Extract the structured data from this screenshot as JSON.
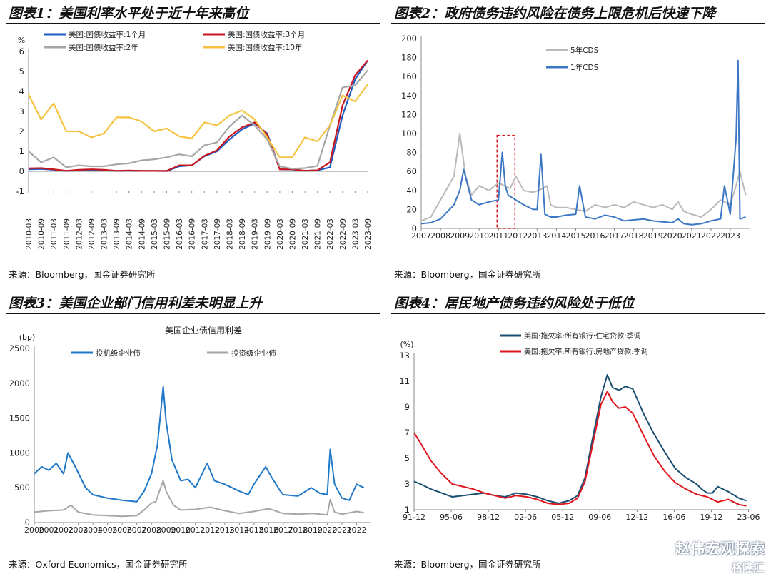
{
  "panels": [
    {
      "title": "图表1：美国利率水平处于近十年来高位",
      "source": "来源：Bloomberg，国金证券研究所"
    },
    {
      "title": "图表2：政府债务违约风险在债务上限危机后快速下降",
      "source": "来源：Bloomberg，国金证券研究所"
    },
    {
      "title": "图表3：美国企业部门信用利差未明显上升",
      "source": "来源：Oxford Economics，国金证券研究所"
    },
    {
      "title": "图表4：居民地产债务违约风险处于低位",
      "source": "来源：Bloomberg，国金证券研究所"
    }
  ],
  "watermark": {
    "text": "赵伟宏观探索",
    "brand": "格隆汇"
  },
  "chart_data": [
    {
      "type": "line",
      "title": "",
      "ylabel": "%",
      "ylim": [
        -1,
        6
      ],
      "yticks": [
        -1,
        0,
        1,
        2,
        3,
        4,
        5,
        6
      ],
      "categories": [
        "2010-03",
        "2010-09",
        "2011-03",
        "2011-09",
        "2012-03",
        "2012-09",
        "2013-03",
        "2013-09",
        "2014-03",
        "2014-09",
        "2015-03",
        "2015-09",
        "2016-03",
        "2016-09",
        "2017-03",
        "2017-09",
        "2018-03",
        "2018-09",
        "2019-03",
        "2019-09",
        "2020-03",
        "2020-09",
        "2021-03",
        "2021-09",
        "2022-03",
        "2022-09",
        "2023-03",
        "2023-09"
      ],
      "legend_position": "top-left",
      "series": [
        {
          "name": "美国:国债收益率:1个月",
          "color": "#1f5bc4",
          "values": [
            0.1,
            0.12,
            0.08,
            0.02,
            0.05,
            0.08,
            0.06,
            0.02,
            0.03,
            0.02,
            0.02,
            0.01,
            0.25,
            0.3,
            0.75,
            1.0,
            1.6,
            2.1,
            2.4,
            1.9,
            0.1,
            0.09,
            0.03,
            0.05,
            0.2,
            2.8,
            4.6,
            5.55
          ]
        },
        {
          "name": "美国:国债收益率:3个月",
          "color": "#c8161e",
          "values": [
            0.15,
            0.16,
            0.1,
            0.02,
            0.08,
            0.1,
            0.08,
            0.02,
            0.04,
            0.02,
            0.02,
            0.02,
            0.3,
            0.3,
            0.77,
            1.05,
            1.75,
            2.2,
            2.45,
            1.85,
            0.1,
            0.1,
            0.03,
            0.05,
            0.45,
            3.3,
            4.8,
            5.55
          ]
        },
        {
          "name": "美国:国债收益率:2年",
          "color": "#a6a6a6",
          "values": [
            1.0,
            0.45,
            0.7,
            0.2,
            0.3,
            0.25,
            0.25,
            0.35,
            0.4,
            0.55,
            0.6,
            0.7,
            0.85,
            0.75,
            1.3,
            1.45,
            2.25,
            2.8,
            2.3,
            1.6,
            0.25,
            0.13,
            0.16,
            0.27,
            2.3,
            4.2,
            4.3,
            5.05
          ]
        },
        {
          "name": "美国:国债收益率:10年",
          "color": "#f5c342",
          "values": [
            3.85,
            2.6,
            3.4,
            2.0,
            2.0,
            1.7,
            1.9,
            2.7,
            2.7,
            2.5,
            2.0,
            2.15,
            1.75,
            1.65,
            2.45,
            2.3,
            2.8,
            3.05,
            2.6,
            1.7,
            0.7,
            0.7,
            1.7,
            1.5,
            2.3,
            3.8,
            3.5,
            4.35
          ]
        }
      ]
    },
    {
      "type": "line",
      "title": "",
      "ylim": [
        0,
        200
      ],
      "yticks": [
        0,
        20,
        40,
        60,
        80,
        100,
        120,
        140,
        160,
        180,
        200
      ],
      "categories": [
        "2007",
        "2008",
        "2009",
        "2010",
        "2011",
        "2012",
        "2013",
        "2014",
        "2015",
        "2016",
        "2017",
        "2018",
        "2019",
        "2020",
        "2021",
        "2022",
        "2023"
      ],
      "legend_position": "top-left",
      "annotation": "dashed box around 2011 spike",
      "series": [
        {
          "name": "5年CDS",
          "color": "#b9b9b9",
          "x": [
            2007,
            2007.5,
            2008,
            2008.7,
            2009,
            2009.3,
            2009.6,
            2010,
            2010.5,
            2011,
            2011.3,
            2011.6,
            2011.9,
            2012.3,
            2012.8,
            2013.3,
            2013.5,
            2013.7,
            2014,
            2014.5,
            2015,
            2015.5,
            2016,
            2016.5,
            2017,
            2017.5,
            2018,
            2018.5,
            2019,
            2019.5,
            2020,
            2020.3,
            2020.6,
            2021,
            2021.5,
            2022,
            2022.5,
            2023,
            2023.3,
            2023.5,
            2023.8
          ],
          "values": [
            8,
            12,
            30,
            55,
            100,
            55,
            35,
            45,
            40,
            48,
            45,
            42,
            55,
            40,
            38,
            42,
            45,
            25,
            22,
            22,
            20,
            18,
            25,
            22,
            25,
            22,
            28,
            25,
            22,
            25,
            20,
            28,
            18,
            15,
            12,
            20,
            30,
            25,
            45,
            60,
            35
          ]
        },
        {
          "name": "1年CDS",
          "color": "#3b77c4",
          "x": [
            2007,
            2007.5,
            2008,
            2008.7,
            2009,
            2009.2,
            2009.6,
            2010,
            2010.5,
            2011,
            2011.2,
            2011.35,
            2011.5,
            2011.9,
            2012.3,
            2012.8,
            2013,
            2013.2,
            2013.4,
            2013.7,
            2014,
            2014.5,
            2015,
            2015.2,
            2015.5,
            2016,
            2016.5,
            2017,
            2017.5,
            2018,
            2018.5,
            2019,
            2019.5,
            2020,
            2020.3,
            2020.6,
            2021,
            2021.5,
            2022,
            2022.5,
            2022.7,
            2023,
            2023.3,
            2023.4,
            2023.5,
            2023.8
          ],
          "values": [
            5,
            6,
            10,
            25,
            40,
            62,
            30,
            25,
            28,
            30,
            80,
            45,
            35,
            30,
            25,
            20,
            20,
            78,
            15,
            12,
            12,
            14,
            15,
            45,
            12,
            10,
            14,
            12,
            8,
            9,
            10,
            8,
            7,
            6,
            10,
            5,
            4,
            5,
            8,
            10,
            45,
            15,
            95,
            177,
            10,
            12
          ]
        }
      ]
    },
    {
      "type": "line",
      "title": "美国企业债信用利差",
      "ylabel": "(bp)",
      "ylim": [
        0,
        2500
      ],
      "yticks": [
        0,
        500,
        1000,
        1500,
        2000,
        2500
      ],
      "categories": [
        "2000",
        "2001",
        "2002",
        "2003",
        "2004",
        "2005",
        "2006",
        "2007",
        "2008",
        "2009",
        "2010",
        "2011",
        "2012",
        "2013",
        "2014",
        "2015",
        "2016",
        "2017",
        "2018",
        "2019",
        "2020",
        "2021",
        "2022"
      ],
      "legend_position": "top",
      "series": [
        {
          "name": "投机级企业债",
          "color": "#1f78c8",
          "x": [
            2000,
            2000.5,
            2001,
            2001.5,
            2002,
            2002.3,
            2002.8,
            2003.5,
            2004,
            2005,
            2006,
            2007,
            2007.5,
            2008,
            2008.4,
            2008.8,
            2009,
            2009.4,
            2010,
            2010.5,
            2011,
            2011.8,
            2012.3,
            2013,
            2014,
            2014.6,
            2015,
            2015.8,
            2016.2,
            2016.8,
            2017,
            2018,
            2018.9,
            2019.5,
            2020,
            2020.2,
            2020.5,
            2021,
            2021.5,
            2022,
            2022.5
          ],
          "values": [
            700,
            800,
            750,
            850,
            700,
            1000,
            800,
            500,
            400,
            350,
            320,
            300,
            450,
            700,
            1100,
            1950,
            1450,
            900,
            600,
            620,
            500,
            850,
            600,
            550,
            450,
            400,
            550,
            800,
            650,
            450,
            400,
            380,
            500,
            420,
            400,
            1050,
            550,
            350,
            320,
            550,
            500
          ]
        },
        {
          "name": "投资级企业债",
          "color": "#a6a6a6",
          "x": [
            2000,
            2001,
            2002,
            2002.5,
            2003,
            2004,
            2005,
            2006,
            2007,
            2007.5,
            2008,
            2008.3,
            2008.8,
            2009,
            2009.5,
            2010,
            2011,
            2012,
            2013,
            2014,
            2015,
            2016,
            2017,
            2018,
            2019,
            2020,
            2020.2,
            2020.5,
            2021,
            2022,
            2022.5
          ],
          "values": [
            150,
            170,
            180,
            250,
            150,
            110,
            100,
            90,
            100,
            180,
            280,
            300,
            600,
            450,
            250,
            180,
            190,
            220,
            170,
            130,
            160,
            200,
            130,
            120,
            130,
            110,
            330,
            150,
            120,
            160,
            140
          ]
        }
      ]
    },
    {
      "type": "line",
      "title": "",
      "ylabel": "(%)",
      "ylim": [
        1,
        13
      ],
      "yticks": [
        1,
        3,
        5,
        7,
        9,
        11,
        13
      ],
      "categories": [
        "91-12",
        "95-06",
        "98-12",
        "02-06",
        "05-12",
        "09-06",
        "12-12",
        "16-06",
        "19-12",
        "23-06"
      ],
      "legend_position": "top-left",
      "series": [
        {
          "name": "美国:拖欠率:所有银行:住宅贷款:季调",
          "color": "#1b4f72",
          "x": [
            1991.9,
            1992.5,
            1993.5,
            1994.5,
            1995.5,
            1996.5,
            1997.5,
            1998.5,
            1999,
            1999.5,
            2000.5,
            2001.5,
            2002.5,
            2003.5,
            2004.5,
            2005.5,
            2006.5,
            2007.3,
            2008,
            2008.7,
            2009.5,
            2010.1,
            2010.6,
            2011.2,
            2011.8,
            2012.5,
            2013.5,
            2014.5,
            2015.5,
            2016.5,
            2017.5,
            2018.5,
            2019,
            2019.5,
            2020,
            2020.5,
            2021.5,
            2022.5,
            2023.2
          ],
          "values": [
            3.2,
            3.0,
            2.6,
            2.3,
            2.0,
            2.1,
            2.2,
            2.3,
            2.2,
            2.1,
            2.0,
            2.3,
            2.2,
            2.0,
            1.7,
            1.5,
            1.7,
            2.1,
            3.5,
            6.5,
            9.8,
            11.5,
            10.5,
            10.3,
            10.6,
            10.4,
            8.5,
            6.9,
            5.5,
            4.2,
            3.5,
            3.0,
            2.6,
            2.3,
            2.3,
            2.8,
            2.4,
            1.9,
            1.7
          ]
        },
        {
          "name": "美国:拖欠率:所有银行:房地产贷款:季调",
          "color": "#e0161e",
          "x": [
            1991.9,
            1992.5,
            1993.5,
            1994.5,
            1995.5,
            1996.5,
            1997.5,
            1998.5,
            1999.5,
            2000.5,
            2001.5,
            2002.5,
            2003.5,
            2004.5,
            2005.5,
            2006.5,
            2007.3,
            2008,
            2008.7,
            2009.5,
            2010.1,
            2010.6,
            2011.2,
            2011.8,
            2012.5,
            2013.5,
            2014.5,
            2015.5,
            2016.5,
            2017.5,
            2018.5,
            2019.5,
            2020.5,
            2021.5,
            2022.5,
            2023.2
          ],
          "values": [
            7.0,
            6.2,
            4.8,
            3.8,
            3.0,
            2.8,
            2.6,
            2.3,
            2.1,
            1.9,
            2.1,
            2.0,
            1.8,
            1.5,
            1.4,
            1.5,
            1.9,
            3.2,
            6.0,
            9.2,
            10.2,
            9.4,
            8.9,
            9.0,
            8.5,
            6.8,
            5.2,
            4.0,
            3.1,
            2.6,
            2.2,
            2.0,
            1.6,
            1.8,
            1.4,
            1.3
          ]
        }
      ]
    }
  ]
}
